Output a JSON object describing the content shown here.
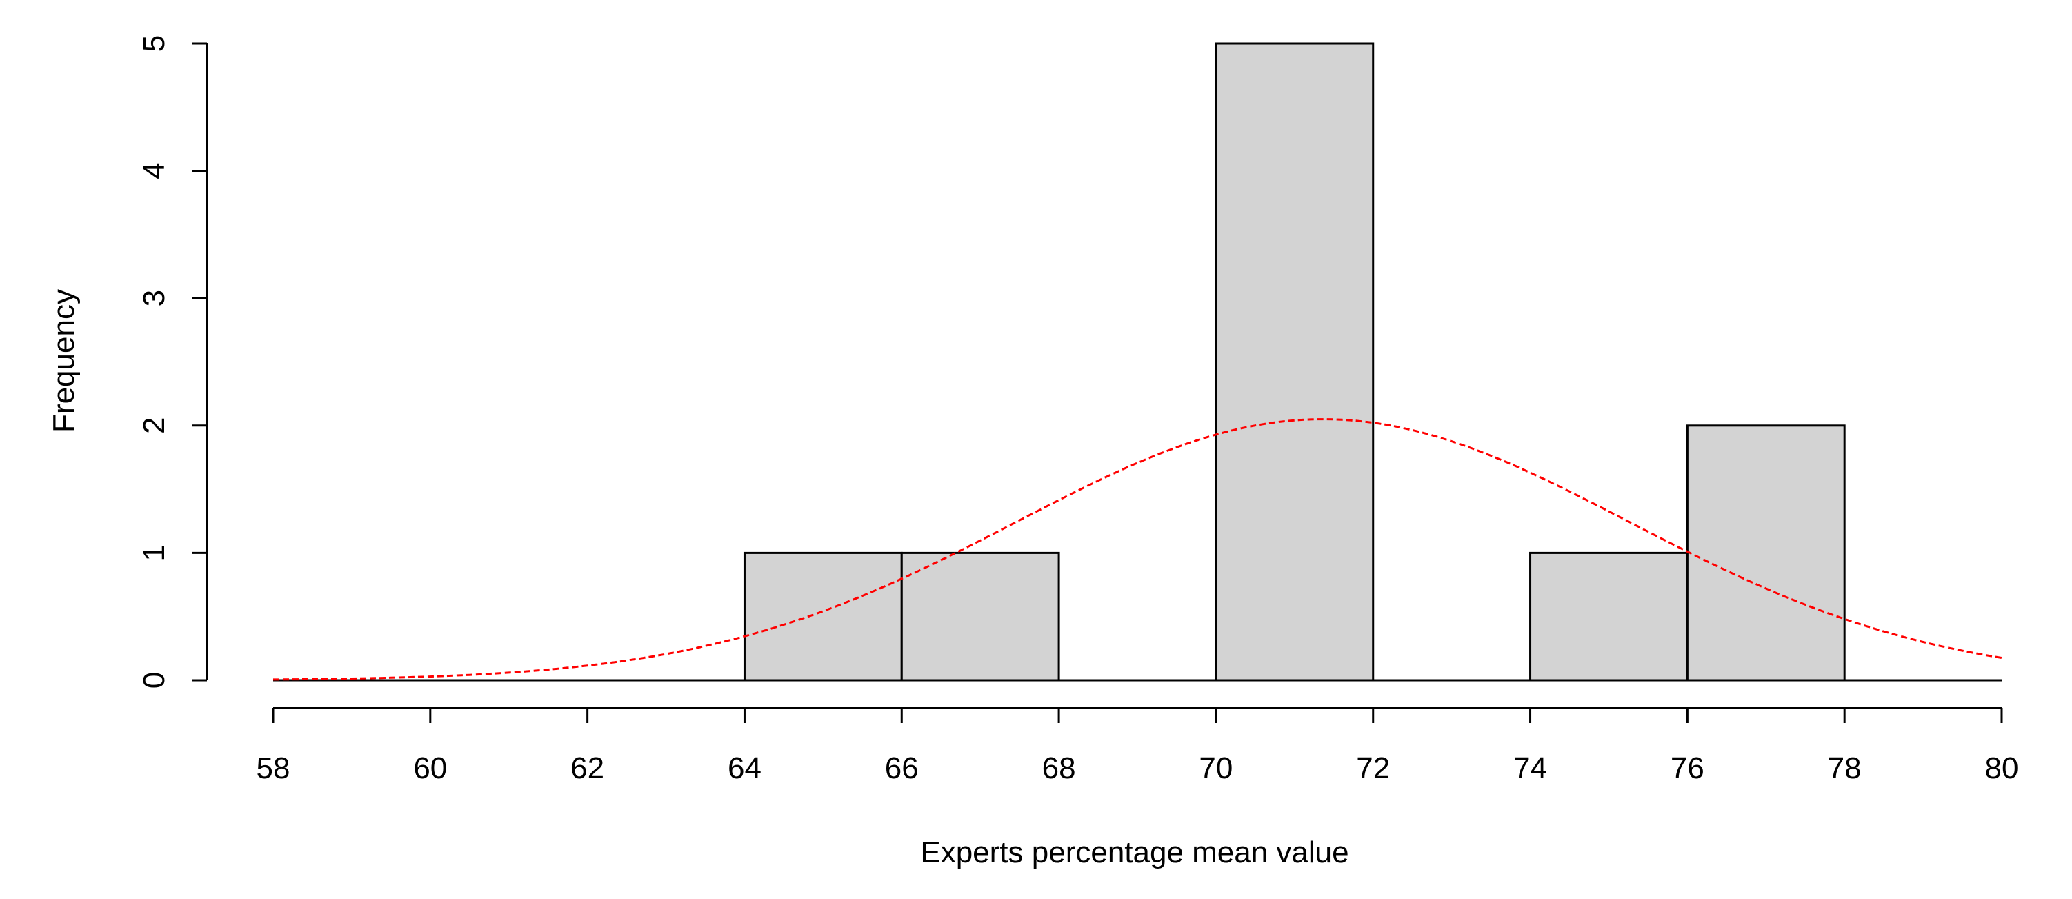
{
  "chart_data": {
    "type": "bar",
    "subtype": "histogram",
    "bins": [
      {
        "start": 64,
        "end": 66,
        "count": 1
      },
      {
        "start": 66,
        "end": 68,
        "count": 1
      },
      {
        "start": 68,
        "end": 70,
        "count": 0
      },
      {
        "start": 70,
        "end": 72,
        "count": 5
      },
      {
        "start": 72,
        "end": 74,
        "count": 0
      },
      {
        "start": 74,
        "end": 76,
        "count": 1
      },
      {
        "start": 76,
        "end": 78,
        "count": 2
      }
    ],
    "xlabel": "Experts percentage mean value",
    "ylabel": "Frequency",
    "xlim": [
      58,
      80
    ],
    "ylim": [
      0,
      5
    ],
    "x_ticks": [
      "58",
      "60",
      "62",
      "64",
      "66",
      "68",
      "70",
      "72",
      "74",
      "76",
      "78",
      "80"
    ],
    "y_ticks": [
      "0",
      "1",
      "2",
      "3",
      "4",
      "5"
    ],
    "bar_color": "#d3d3d3",
    "bar_border_color": "#000000",
    "grid": false,
    "legend": "none",
    "overlay_curve": {
      "type": "normal-density",
      "style": "dashed",
      "color": "#ff0000",
      "mean": 71.36,
      "sd": 3.9,
      "peak_frequency": 2.05
    }
  }
}
